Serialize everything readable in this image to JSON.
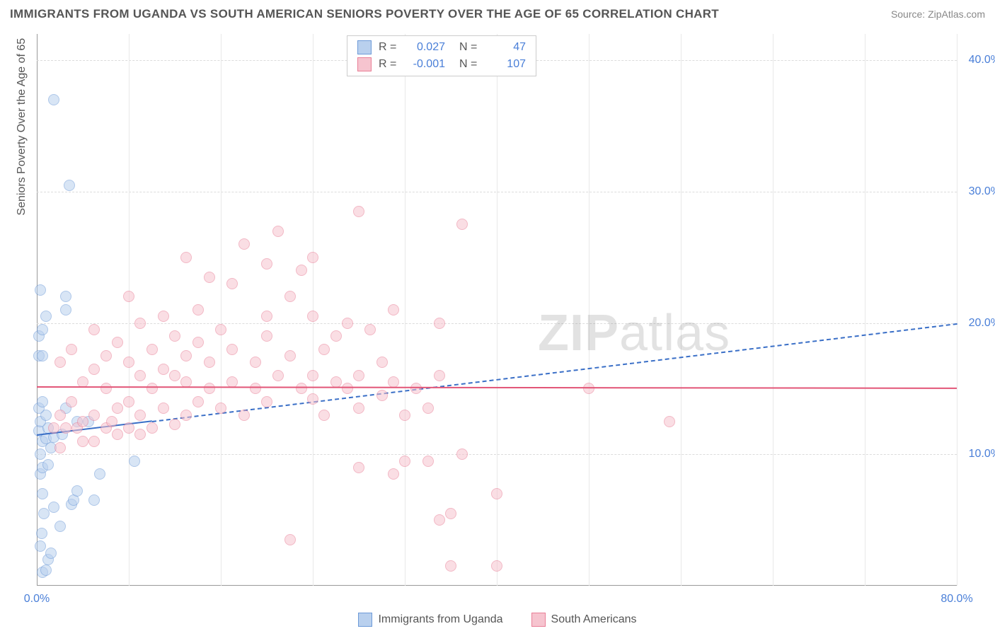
{
  "title": "IMMIGRANTS FROM UGANDA VS SOUTH AMERICAN SENIORS POVERTY OVER THE AGE OF 65 CORRELATION CHART",
  "source": "Source: ZipAtlas.com",
  "watermark_a": "ZIP",
  "watermark_b": "atlas",
  "ylabel": "Seniors Poverty Over the Age of 65",
  "chart": {
    "type": "scatter",
    "xlim": [
      0,
      80
    ],
    "ylim": [
      0,
      42
    ],
    "background_color": "#ffffff",
    "grid_color": "#dcdcdc",
    "axis_color": "#999999",
    "tick_label_color": "#4a7fd8",
    "tick_fontsize": 16,
    "label_fontsize": 16,
    "point_radius": 8,
    "point_opacity": 0.55,
    "xticks": [
      {
        "v": 0,
        "label": "0.0%"
      },
      {
        "v": 80,
        "label": "80.0%"
      }
    ],
    "yticks": [
      {
        "v": 10,
        "label": "10.0%"
      },
      {
        "v": 20,
        "label": "20.0%"
      },
      {
        "v": 30,
        "label": "30.0%"
      },
      {
        "v": 40,
        "label": "40.0%"
      }
    ],
    "vgrid": [
      8,
      16,
      24,
      32,
      40,
      48,
      56,
      64,
      72,
      80
    ],
    "series": [
      {
        "name": "Immigrants from Uganda",
        "fill": "#b9d0ee",
        "stroke": "#6d9ad8",
        "r": 0.027,
        "n": 47,
        "trend": {
          "y_at_x0": 11.5,
          "y_at_xmax": 20.0,
          "solid_to_x": 10,
          "color": "#3a6fc7",
          "width": 2,
          "dash": "6,5"
        },
        "points": [
          [
            0.5,
            1.0
          ],
          [
            0.8,
            1.2
          ],
          [
            1.0,
            2.0
          ],
          [
            1.2,
            2.5
          ],
          [
            0.3,
            3.0
          ],
          [
            0.4,
            4.0
          ],
          [
            2.0,
            4.5
          ],
          [
            0.6,
            5.5
          ],
          [
            1.5,
            6.0
          ],
          [
            3.0,
            6.2
          ],
          [
            3.2,
            6.5
          ],
          [
            5.0,
            6.5
          ],
          [
            0.5,
            7.0
          ],
          [
            3.5,
            7.2
          ],
          [
            0.3,
            8.5
          ],
          [
            5.5,
            8.5
          ],
          [
            0.5,
            9.0
          ],
          [
            1.0,
            9.2
          ],
          [
            8.5,
            9.5
          ],
          [
            0.3,
            10.0
          ],
          [
            1.2,
            10.5
          ],
          [
            0.5,
            11.0
          ],
          [
            0.8,
            11.2
          ],
          [
            1.5,
            11.3
          ],
          [
            2.2,
            11.5
          ],
          [
            0.2,
            11.8
          ],
          [
            1.0,
            12.0
          ],
          [
            0.3,
            12.5
          ],
          [
            3.5,
            12.5
          ],
          [
            4.5,
            12.5
          ],
          [
            0.8,
            13.0
          ],
          [
            0.2,
            13.5
          ],
          [
            2.5,
            13.5
          ],
          [
            0.5,
            14.0
          ],
          [
            0.2,
            17.5
          ],
          [
            0.5,
            17.5
          ],
          [
            0.2,
            19.0
          ],
          [
            0.5,
            19.5
          ],
          [
            0.8,
            20.5
          ],
          [
            2.5,
            21.0
          ],
          [
            2.5,
            22.0
          ],
          [
            0.3,
            22.5
          ],
          [
            2.8,
            30.5
          ],
          [
            1.5,
            37.0
          ]
        ]
      },
      {
        "name": "South Americans",
        "fill": "#f6c4cf",
        "stroke": "#e97f97",
        "r": -0.001,
        "n": 107,
        "trend": {
          "y_at_x0": 15.2,
          "y_at_xmax": 15.1,
          "solid_to_x": 80,
          "color": "#e25577",
          "width": 2,
          "dash": "none"
        },
        "points": [
          [
            36,
            1.5
          ],
          [
            40,
            1.5
          ],
          [
            22,
            3.5
          ],
          [
            35,
            5.0
          ],
          [
            36,
            5.5
          ],
          [
            40,
            7.0
          ],
          [
            31,
            8.5
          ],
          [
            28,
            9.0
          ],
          [
            32,
            9.5
          ],
          [
            34,
            9.5
          ],
          [
            37,
            10.0
          ],
          [
            2,
            10.5
          ],
          [
            4,
            11.0
          ],
          [
            5,
            11.0
          ],
          [
            7,
            11.5
          ],
          [
            9,
            11.5
          ],
          [
            1.5,
            12.0
          ],
          [
            2.5,
            12.0
          ],
          [
            3.5,
            12.0
          ],
          [
            6,
            12.0
          ],
          [
            8,
            12.0
          ],
          [
            10,
            12.0
          ],
          [
            12,
            12.3
          ],
          [
            4,
            12.5
          ],
          [
            6.5,
            12.5
          ],
          [
            55,
            12.5
          ],
          [
            2,
            13.0
          ],
          [
            5,
            13.0
          ],
          [
            9,
            13.0
          ],
          [
            13,
            13.0
          ],
          [
            18,
            13.0
          ],
          [
            25,
            13.0
          ],
          [
            32,
            13.0
          ],
          [
            7,
            13.5
          ],
          [
            11,
            13.5
          ],
          [
            16,
            13.5
          ],
          [
            28,
            13.5
          ],
          [
            34,
            13.5
          ],
          [
            3,
            14.0
          ],
          [
            8,
            14.0
          ],
          [
            14,
            14.0
          ],
          [
            20,
            14.0
          ],
          [
            24,
            14.2
          ],
          [
            30,
            14.5
          ],
          [
            6,
            15.0
          ],
          [
            10,
            15.0
          ],
          [
            15,
            15.0
          ],
          [
            19,
            15.0
          ],
          [
            23,
            15.0
          ],
          [
            27,
            15.0
          ],
          [
            33,
            15.0
          ],
          [
            48,
            15.0
          ],
          [
            4,
            15.5
          ],
          [
            13,
            15.5
          ],
          [
            17,
            15.5
          ],
          [
            26,
            15.5
          ],
          [
            31,
            15.5
          ],
          [
            9,
            16.0
          ],
          [
            12,
            16.0
          ],
          [
            21,
            16.0
          ],
          [
            24,
            16.0
          ],
          [
            28,
            16.0
          ],
          [
            35,
            16.0
          ],
          [
            5,
            16.5
          ],
          [
            11,
            16.5
          ],
          [
            2,
            17.0
          ],
          [
            8,
            17.0
          ],
          [
            15,
            17.0
          ],
          [
            19,
            17.0
          ],
          [
            30,
            17.0
          ],
          [
            6,
            17.5
          ],
          [
            13,
            17.5
          ],
          [
            22,
            17.5
          ],
          [
            3,
            18.0
          ],
          [
            10,
            18.0
          ],
          [
            17,
            18.0
          ],
          [
            25,
            18.0
          ],
          [
            7,
            18.5
          ],
          [
            14,
            18.5
          ],
          [
            12,
            19.0
          ],
          [
            20,
            19.0
          ],
          [
            26,
            19.0
          ],
          [
            5,
            19.5
          ],
          [
            16,
            19.5
          ],
          [
            29,
            19.5
          ],
          [
            9,
            20.0
          ],
          [
            27,
            20.0
          ],
          [
            35,
            20.0
          ],
          [
            11,
            20.5
          ],
          [
            20,
            20.5
          ],
          [
            24,
            20.5
          ],
          [
            14,
            21.0
          ],
          [
            31,
            21.0
          ],
          [
            8,
            22.0
          ],
          [
            22,
            22.0
          ],
          [
            17,
            23.0
          ],
          [
            15,
            23.5
          ],
          [
            23,
            24.0
          ],
          [
            20,
            24.5
          ],
          [
            13,
            25.0
          ],
          [
            24,
            25.0
          ],
          [
            18,
            26.0
          ],
          [
            21,
            27.0
          ],
          [
            37,
            27.5
          ],
          [
            28,
            28.5
          ]
        ]
      }
    ]
  },
  "legend_stats_labels": {
    "r": "R =",
    "n": "N ="
  },
  "bottom_legend": true
}
